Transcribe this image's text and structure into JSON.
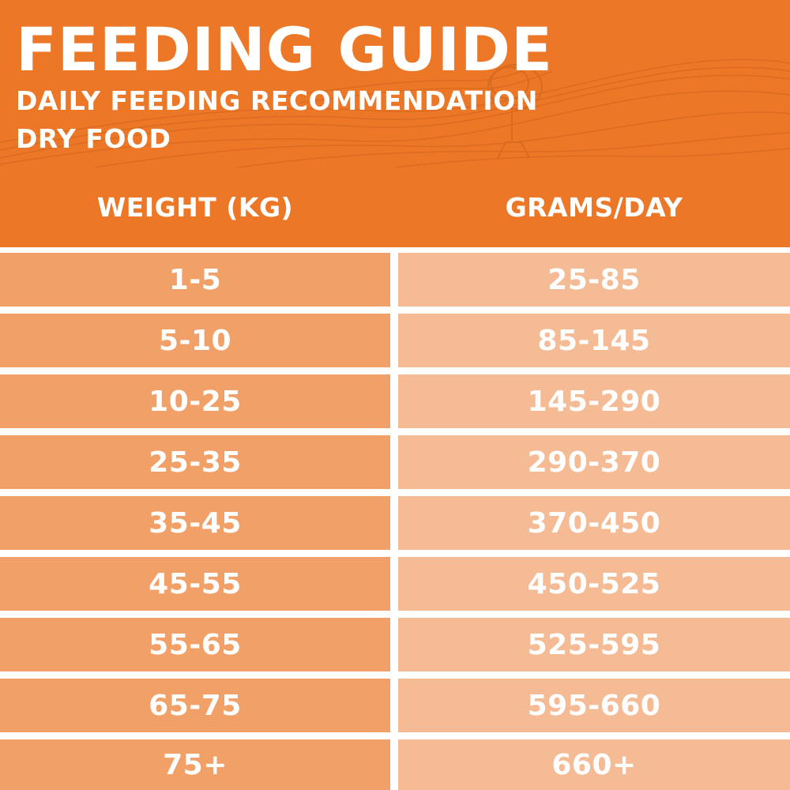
{
  "header": {
    "title": "FEEDING GUIDE",
    "subtitle": "DAILY FEEDING RECOMMENDATION",
    "subtitle2": "DRY FOOD"
  },
  "table": {
    "columns": [
      "WEIGHT (KG)",
      "GRAMS/DAY"
    ],
    "rows": [
      [
        "1-5",
        "25-85"
      ],
      [
        "5-10",
        "85-145"
      ],
      [
        "10-25",
        "145-290"
      ],
      [
        "25-35",
        "290-370"
      ],
      [
        "35-45",
        "370-450"
      ],
      [
        "45-55",
        "450-525"
      ],
      [
        "55-65",
        "525-595"
      ],
      [
        "65-75",
        "595-660"
      ],
      [
        "75+",
        "660+"
      ]
    ]
  },
  "colors": {
    "header_orange": "#ec7727",
    "weight_cell": "#f1a068",
    "grams_cell": "#f5bb95",
    "text": "#ffffff"
  }
}
